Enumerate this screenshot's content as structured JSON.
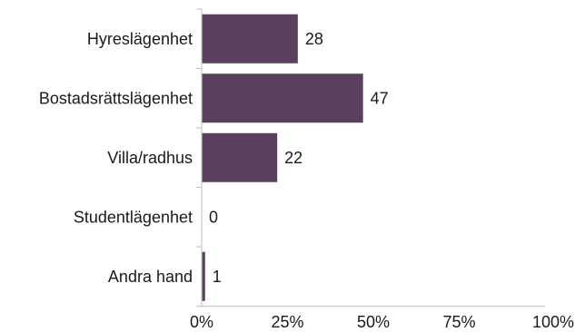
{
  "chart_data": {
    "type": "bar",
    "orientation": "horizontal",
    "categories": [
      "Hyreslägenhet",
      "Bostadsrättslägenhet",
      "Villa/radhus",
      "Studentlägenhet",
      "Andra hand"
    ],
    "values": [
      28,
      47,
      22,
      0,
      1
    ],
    "value_labels": [
      "28",
      "47",
      "22",
      "0",
      "1"
    ],
    "xlim": [
      0,
      100
    ],
    "x_ticks": [
      0,
      25,
      50,
      75,
      100
    ],
    "x_tick_labels": [
      "0%",
      "25%",
      "50%",
      "75%",
      "100%"
    ],
    "grid": false,
    "bar_color": "#5b3f5e"
  }
}
